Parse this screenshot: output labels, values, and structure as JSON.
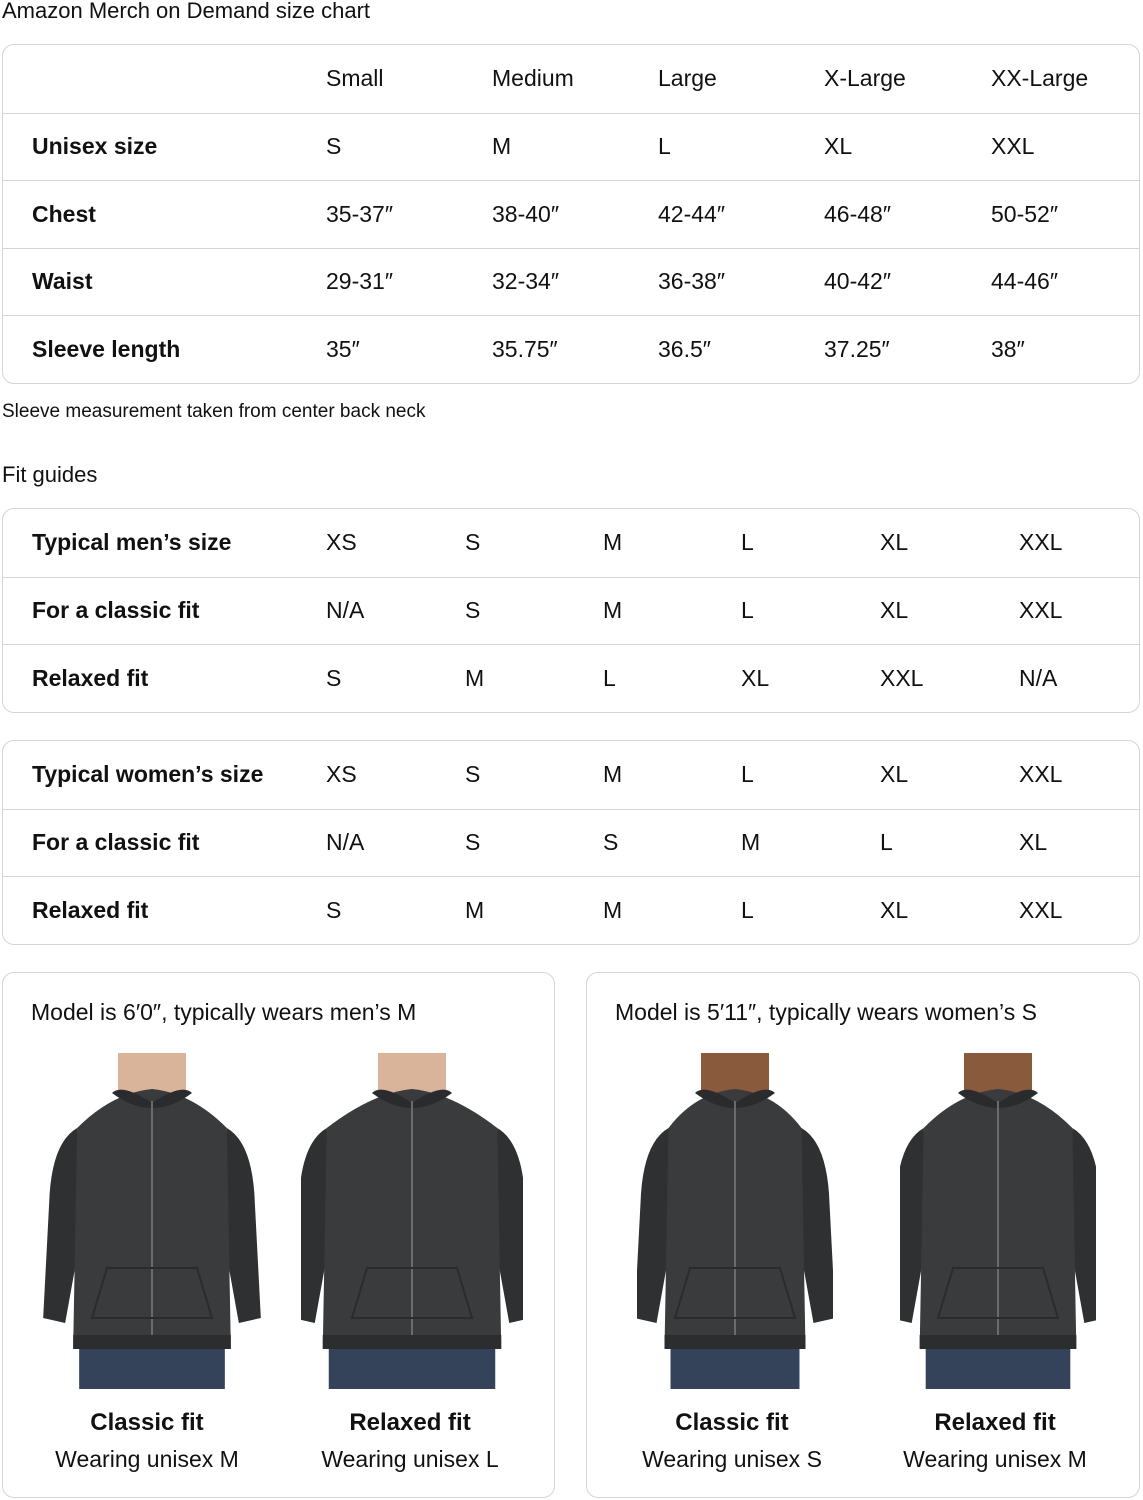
{
  "title": "Amazon Merch on Demand size chart",
  "size_chart": {
    "headers": [
      "",
      "Small",
      "Medium",
      "Large",
      "X-Large",
      "XX-Large"
    ],
    "rows": [
      {
        "label": "Unisex size",
        "values": [
          "S",
          "M",
          "L",
          "XL",
          "XXL"
        ]
      },
      {
        "label": "Chest",
        "values": [
          "35-37″",
          "38-40″",
          "42-44″",
          "46-48″",
          "50-52″"
        ]
      },
      {
        "label": "Waist",
        "values": [
          "29-31″",
          "32-34″",
          "36-38″",
          "40-42″",
          "44-46″"
        ]
      },
      {
        "label": "Sleeve length",
        "values": [
          "35″",
          "35.75″",
          "36.5″",
          "37.25″",
          "38″"
        ]
      }
    ]
  },
  "sleeve_note": "Sleeve measurement taken from center back neck",
  "fit_guides_title": "Fit guides",
  "mens_fit": {
    "rows": [
      {
        "label": "Typical men’s size",
        "values": [
          "XS",
          "S",
          "M",
          "L",
          "XL",
          "XXL"
        ]
      },
      {
        "label": "For a classic fit",
        "values": [
          "N/A",
          "S",
          "M",
          "L",
          "XL",
          "XXL"
        ]
      },
      {
        "label": "Relaxed fit",
        "values": [
          "S",
          "M",
          "L",
          "XL",
          "XXL",
          "N/A"
        ]
      }
    ]
  },
  "womens_fit": {
    "rows": [
      {
        "label": "Typical women’s size",
        "values": [
          "XS",
          "S",
          "M",
          "L",
          "XL",
          "XXL"
        ]
      },
      {
        "label": "For a classic fit",
        "values": [
          "N/A",
          "S",
          "S",
          "M",
          "L",
          "XL"
        ]
      },
      {
        "label": "Relaxed fit",
        "values": [
          "S",
          "M",
          "M",
          "L",
          "XL",
          "XXL"
        ]
      }
    ]
  },
  "models": [
    {
      "title": "Model is 6′0″, typically wears men’s M",
      "photos": [
        {
          "fit": "Classic fit",
          "wearing": "Wearing unisex M"
        },
        {
          "fit": "Relaxed fit",
          "wearing": "Wearing unisex L"
        }
      ]
    },
    {
      "title": "Model is 5′11″, typically wears women’s S",
      "photos": [
        {
          "fit": "Classic fit",
          "wearing": "Wearing unisex S"
        },
        {
          "fit": "Relaxed fit",
          "wearing": "Wearing unisex M"
        }
      ]
    }
  ],
  "colors": {
    "hoodie": "#3a3b3d",
    "jeans": "#34425a",
    "border": "#d5d5d5"
  }
}
